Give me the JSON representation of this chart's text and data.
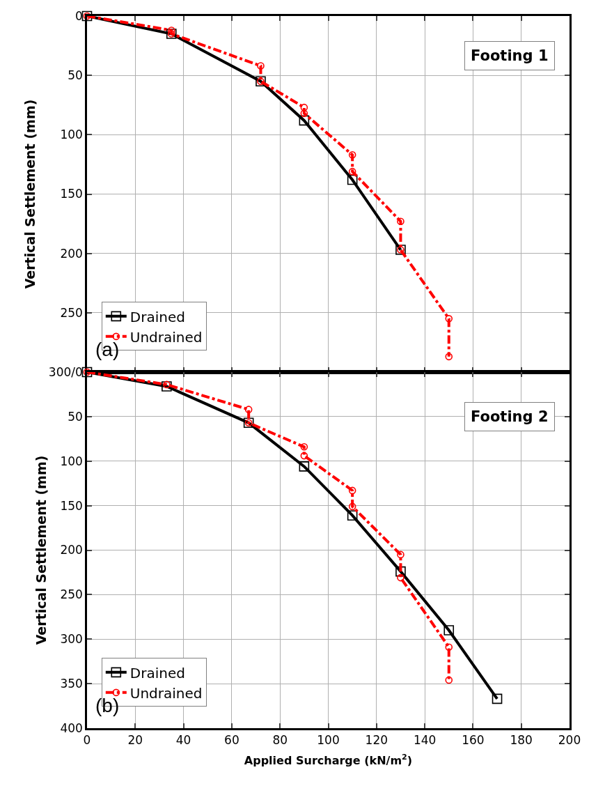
{
  "chart_data": [
    {
      "type": "line",
      "ylabel": "Vertical Settlement (mm)",
      "annotations": [
        "Footing 1",
        "(a)"
      ],
      "xlim": [
        0,
        200
      ],
      "xticks": [
        0,
        20,
        40,
        60,
        80,
        100,
        120,
        140,
        160,
        180,
        200
      ],
      "ylim": [
        300,
        0
      ],
      "yticks": [
        0,
        50,
        100,
        150,
        200,
        250,
        {
          "value": 300,
          "label": "300/0"
        }
      ],
      "tick_labels": "y",
      "grid": true,
      "legend": "bottom left",
      "series": [
        {
          "name": "Drained",
          "color": "#000000",
          "marker": "square",
          "line_style": "solid",
          "x": [
            0,
            35,
            72,
            90,
            110,
            130
          ],
          "values": [
            0,
            15,
            55,
            88,
            138,
            197
          ]
        },
        {
          "name": "Undrained",
          "color": "#ff0000",
          "marker": "circle",
          "line_style": "dashdot",
          "x": [
            0,
            35,
            35,
            72,
            72,
            90,
            90,
            110,
            110,
            130,
            130,
            150,
            150
          ],
          "values": [
            0,
            12,
            15,
            42,
            55,
            77,
            82,
            117,
            131,
            173,
            197,
            255,
            287
          ]
        }
      ]
    },
    {
      "type": "line",
      "xlabel": "Applied Surcharge (kN/m$^{2}$)",
      "ylabel": "Vertical Settlement (mm)",
      "annotations": [
        "Footing 2",
        "(b)"
      ],
      "xlim": [
        0,
        200
      ],
      "xticks": [
        0,
        20,
        40,
        60,
        80,
        100,
        120,
        140,
        160,
        180,
        200
      ],
      "ylim": [
        400,
        0
      ],
      "yticks": [
        {
          "value": 0,
          "label": null
        },
        50,
        100,
        150,
        200,
        250,
        300,
        350,
        400
      ],
      "grid": true,
      "legend": "bottom left",
      "series": [
        {
          "name": "Drained",
          "color": "#000000",
          "marker": "square",
          "line_style": "solid",
          "x": [
            0,
            33,
            67,
            90,
            110,
            130,
            150,
            170
          ],
          "values": [
            0,
            16,
            57,
            106,
            161,
            224,
            290,
            367
          ]
        },
        {
          "name": "Undrained",
          "color": "#ff0000",
          "marker": "circle",
          "line_style": "dashdot",
          "x": [
            0,
            33,
            67,
            67,
            90,
            90,
            110,
            110,
            130,
            130,
            150,
            150
          ],
          "values": [
            0,
            14,
            42,
            57,
            84,
            94,
            133,
            151,
            205,
            231,
            309,
            346
          ]
        }
      ]
    }
  ]
}
